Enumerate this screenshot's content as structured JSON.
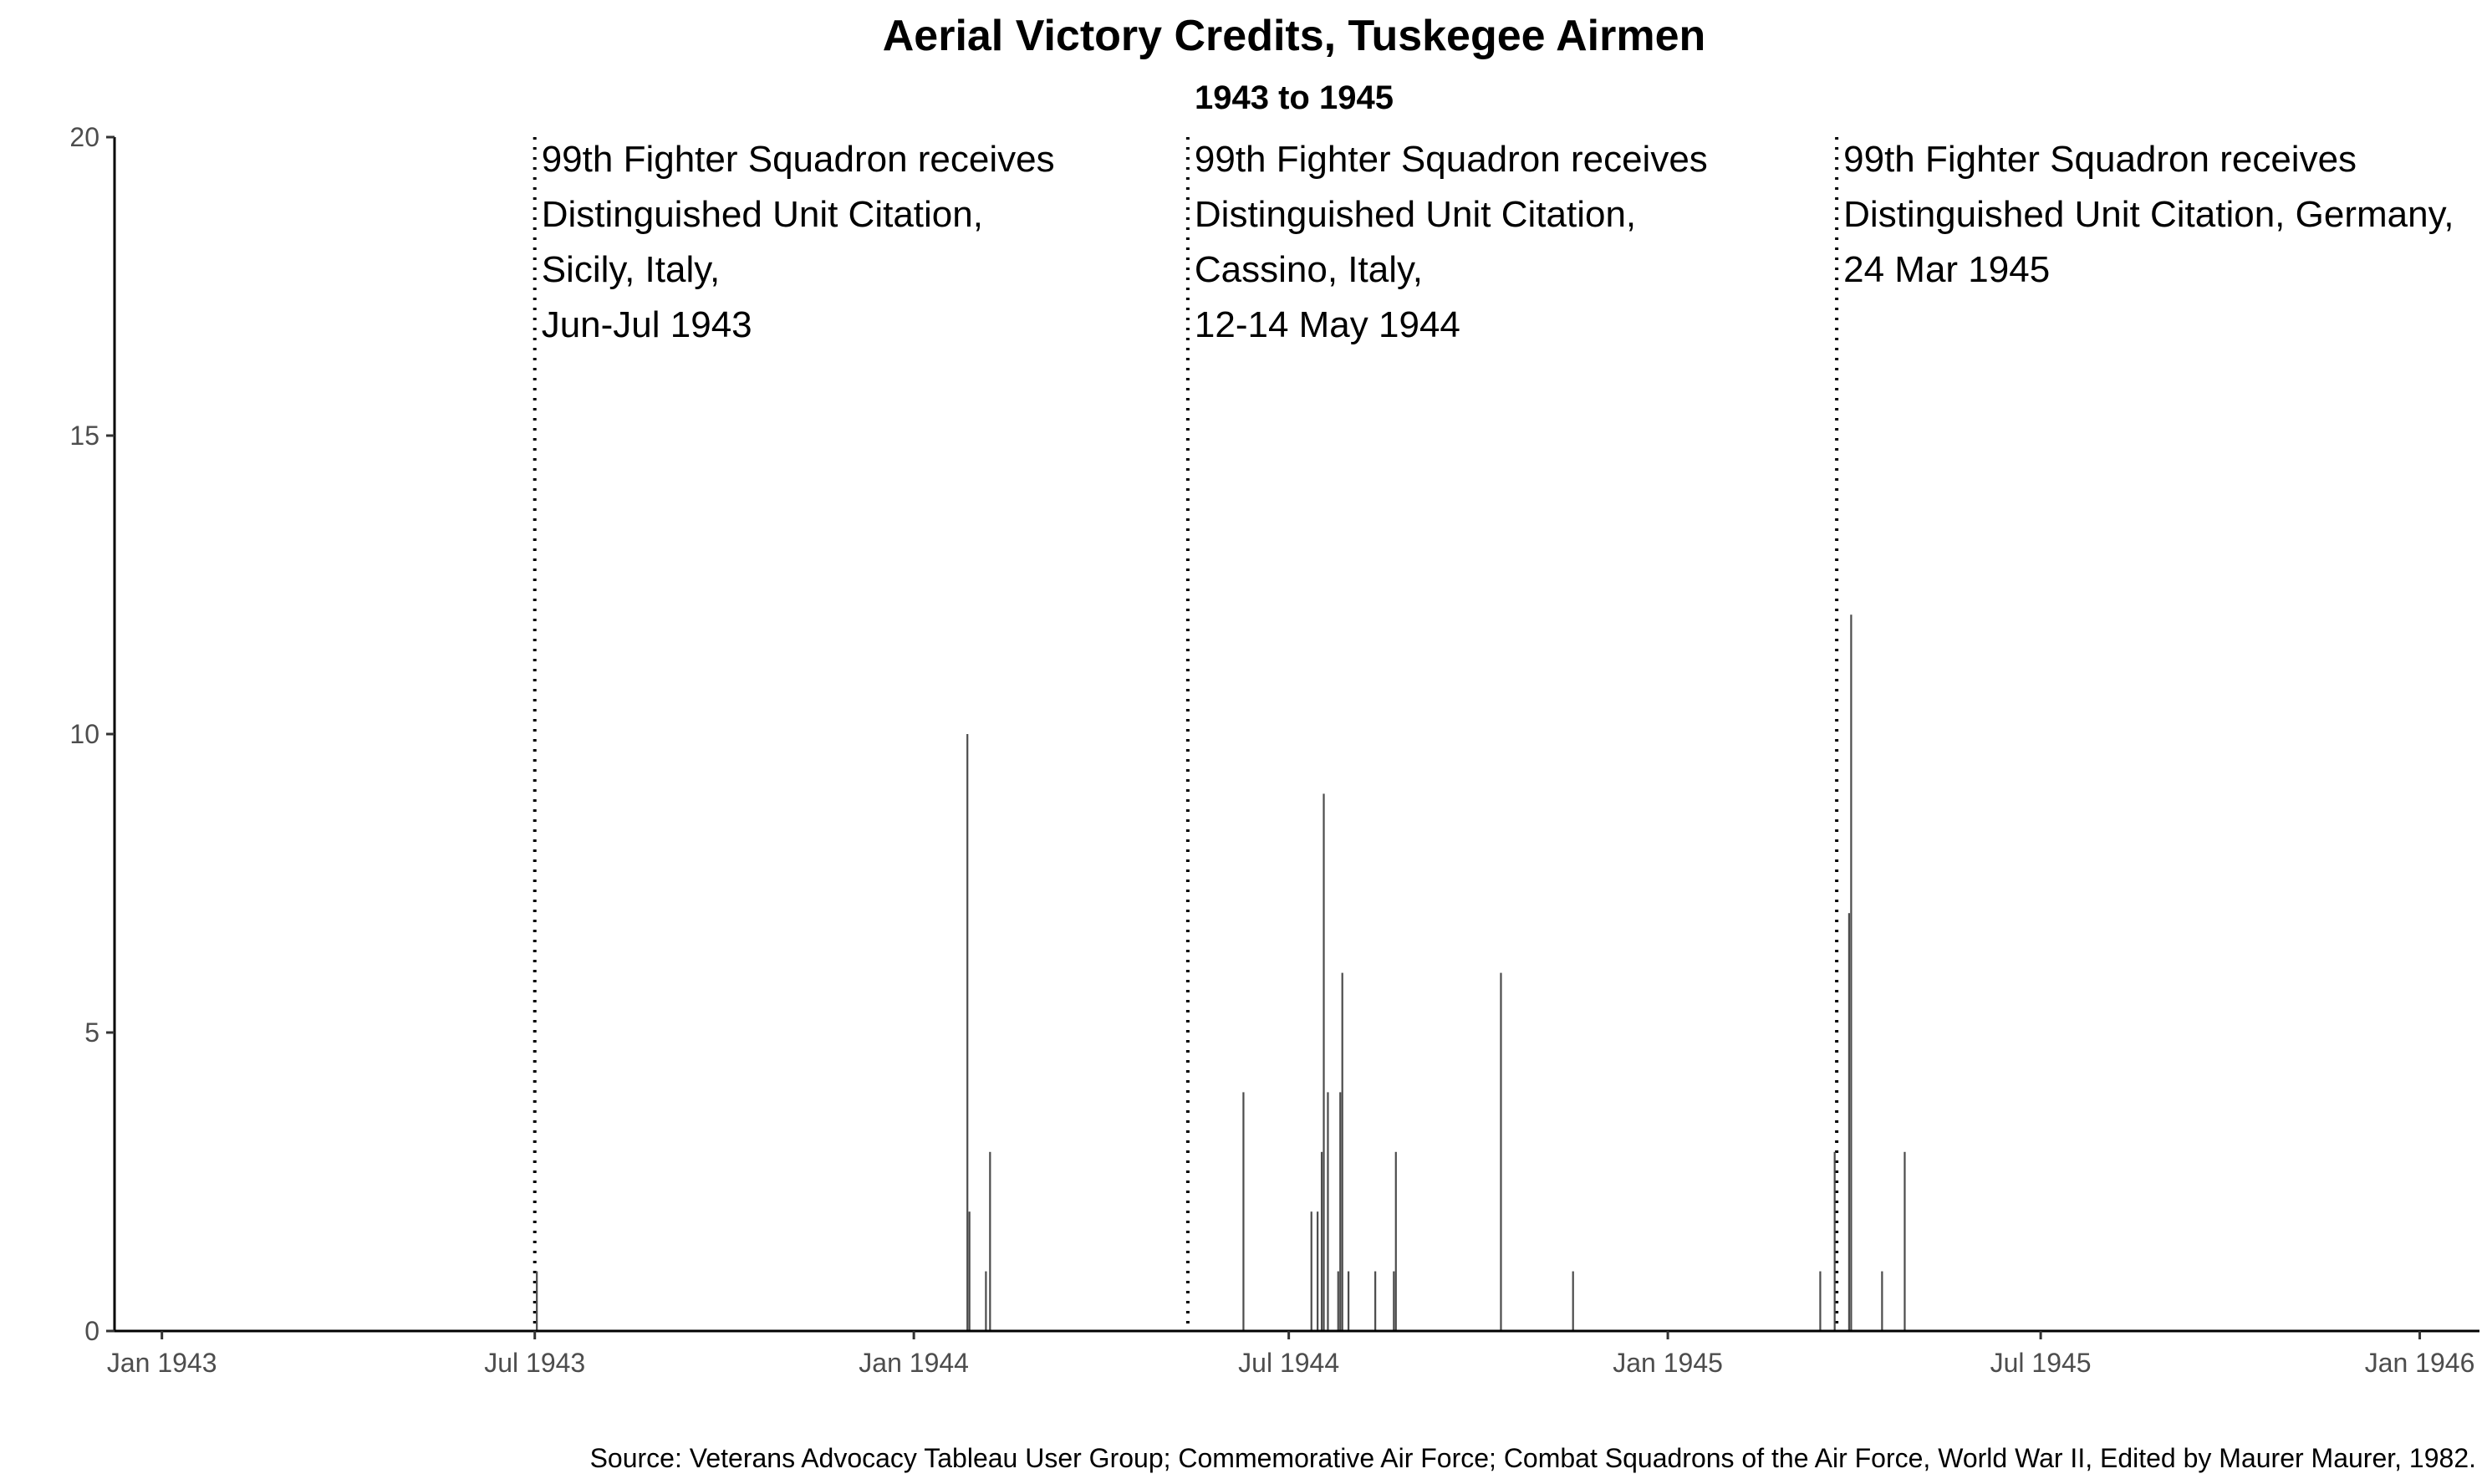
{
  "chart_data": {
    "type": "bar",
    "title": "Aerial Victory Credits, Tuskegee Airmen",
    "subtitle": "1943 to 1945",
    "xlabel": "",
    "ylabel": "",
    "xlim": [
      "1942-12-09",
      "1946-01-30"
    ],
    "ylim": [
      0,
      20
    ],
    "y_ticks": [
      0,
      5,
      10,
      15,
      20
    ],
    "x_ticks": [
      {
        "date": "1943-01-01",
        "label": "Jan 1943"
      },
      {
        "date": "1943-07-01",
        "label": "Jul 1943"
      },
      {
        "date": "1944-01-01",
        "label": "Jan 1944"
      },
      {
        "date": "1944-07-01",
        "label": "Jul 1944"
      },
      {
        "date": "1945-01-01",
        "label": "Jan 1945"
      },
      {
        "date": "1945-07-01",
        "label": "Jul 1945"
      },
      {
        "date": "1946-01-01",
        "label": "Jan 1946"
      }
    ],
    "grid": false,
    "bars": [
      {
        "date": "1943-07-02",
        "value": 1
      },
      {
        "date": "1944-01-27",
        "value": 10
      },
      {
        "date": "1944-01-28",
        "value": 2
      },
      {
        "date": "1944-02-05",
        "value": 1
      },
      {
        "date": "1944-02-07",
        "value": 3
      },
      {
        "date": "1944-06-09",
        "value": 4
      },
      {
        "date": "1944-07-12",
        "value": 2
      },
      {
        "date": "1944-07-15",
        "value": 2
      },
      {
        "date": "1944-07-17",
        "value": 3
      },
      {
        "date": "1944-07-18",
        "value": 9
      },
      {
        "date": "1944-07-20",
        "value": 4
      },
      {
        "date": "1944-07-25",
        "value": 1
      },
      {
        "date": "1944-07-26",
        "value": 4
      },
      {
        "date": "1944-07-27",
        "value": 6
      },
      {
        "date": "1944-07-30",
        "value": 1
      },
      {
        "date": "1944-08-12",
        "value": 1
      },
      {
        "date": "1944-08-21",
        "value": 1
      },
      {
        "date": "1944-08-22",
        "value": 3
      },
      {
        "date": "1944-10-12",
        "value": 6
      },
      {
        "date": "1944-11-16",
        "value": 1
      },
      {
        "date": "1945-03-16",
        "value": 1
      },
      {
        "date": "1945-03-23",
        "value": 3
      },
      {
        "date": "1945-03-30",
        "value": 7
      },
      {
        "date": "1945-03-31",
        "value": 12
      },
      {
        "date": "1945-04-15",
        "value": 1
      },
      {
        "date": "1945-04-26",
        "value": 3
      }
    ],
    "vlines": [
      {
        "date": "1943-07-01",
        "lines": [
          "99th Fighter Squadron receives",
          "Distinguished Unit Citation,",
          "Sicily, Italy,",
          "Jun-Jul 1943"
        ]
      },
      {
        "date": "1944-05-13",
        "lines": [
          "99th Fighter Squadron receives",
          "Distinguished Unit Citation,",
          "Cassino, Italy,",
          "12-14 May 1944"
        ]
      },
      {
        "date": "1945-03-24",
        "lines": [
          "99th Fighter Squadron receives",
          "Distinguished Unit Citation, Germany,",
          "24 Mar 1945"
        ]
      }
    ],
    "caption": "Source: Veterans Advocacy Tableau User Group; Commemorative Air Force; Combat Squadrons of the Air Force, World War II, Edited by Maurer Maurer, 1982."
  }
}
